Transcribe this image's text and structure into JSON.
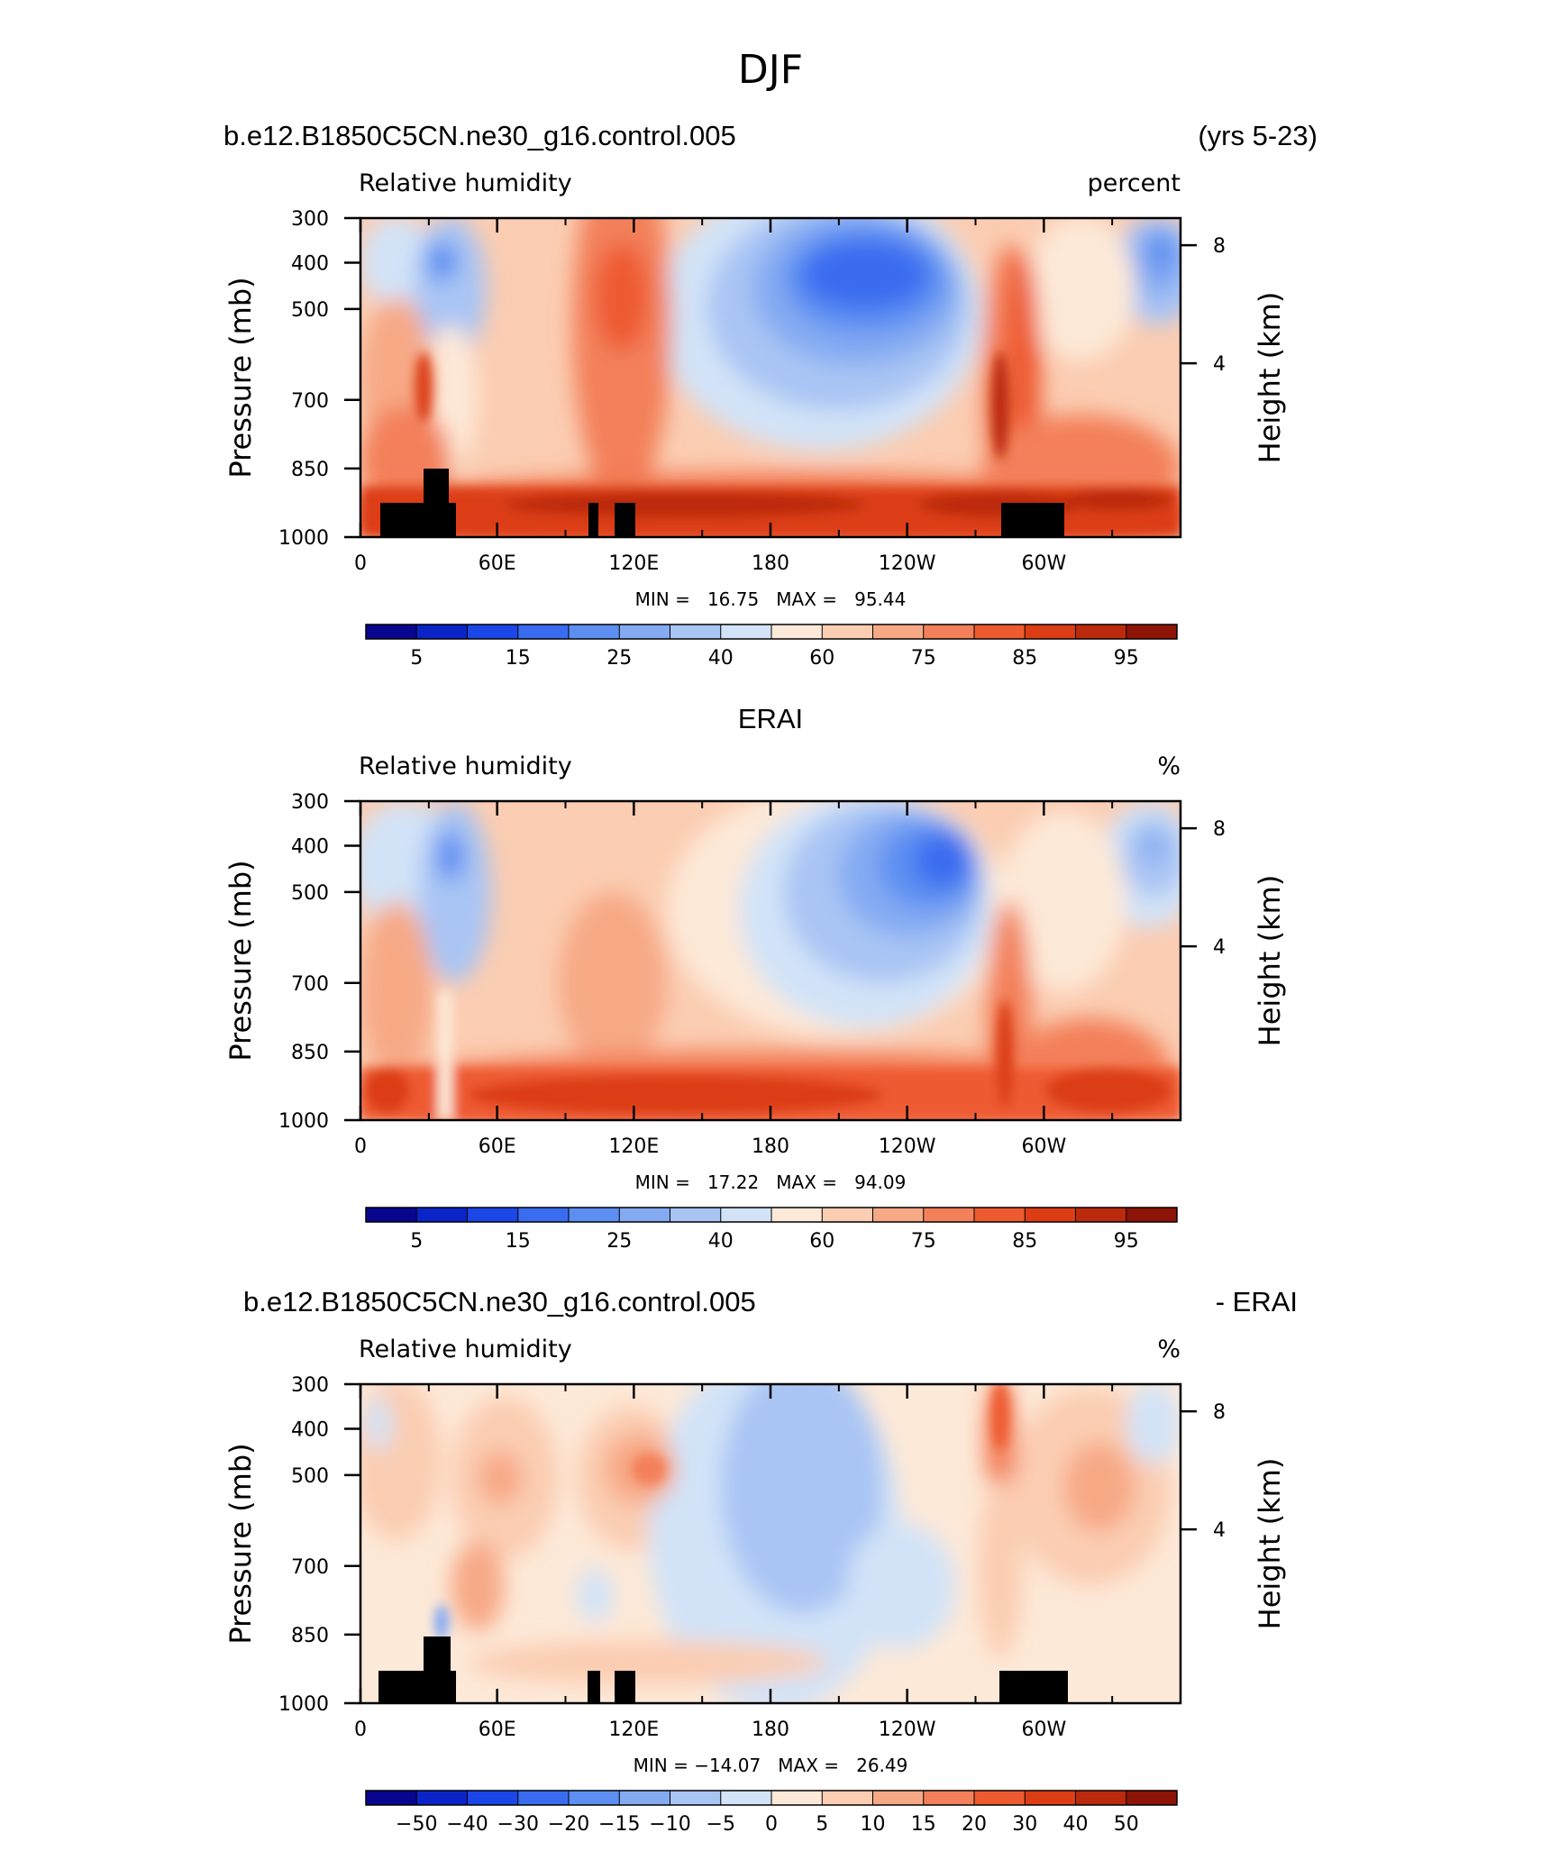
{
  "main_title": "DJF",
  "chart_data": [
    {
      "type": "heatmap",
      "id": "model",
      "header_left": "b.e12.B1850C5CN.ne30_g16.control.005",
      "header_right": "(yrs 5-23)",
      "left_string": "Relative humidity",
      "right_string": "percent",
      "ylabel": "Pressure (mb)",
      "ylabel_right": "Height (km)",
      "xticks": [
        "0",
        "60E",
        "120E",
        "180",
        "120W",
        "60W"
      ],
      "yticks": [
        "300",
        "400",
        "500",
        "700",
        "850",
        "1000"
      ],
      "yticks_right": [
        "8",
        "4"
      ],
      "stats": "MIN =   16.75   MAX =   95.44",
      "min": 16.75,
      "max": 95.44,
      "levels": [
        5,
        10,
        15,
        20,
        25,
        30,
        40,
        50,
        60,
        65,
        75,
        80,
        85,
        90,
        95
      ],
      "colorbar_labels": [
        "5",
        "15",
        "25",
        "40",
        "60",
        "75",
        "85",
        "95"
      ],
      "colors": [
        "#08068e",
        "#0b24c8",
        "#1b46e8",
        "#3a6cf0",
        "#5d8ff2",
        "#84aaf2",
        "#a9c5f4",
        "#d2e3f8",
        "#fde9d8",
        "#fbcdb2",
        "#f7a986",
        "#f3805a",
        "#ee5a30",
        "#dc3d14",
        "#bc2a0d",
        "#8e1407"
      ],
      "has_topography": true
    },
    {
      "type": "heatmap",
      "id": "obs",
      "header_center": "ERAI",
      "left_string": "Relative humidity",
      "right_string": "%",
      "ylabel": "Pressure (mb)",
      "ylabel_right": "Height (km)",
      "xticks": [
        "0",
        "60E",
        "120E",
        "180",
        "120W",
        "60W"
      ],
      "yticks": [
        "300",
        "400",
        "500",
        "700",
        "850",
        "1000"
      ],
      "yticks_right": [
        "8",
        "4"
      ],
      "stats": "MIN =   17.22   MAX =   94.09",
      "min": 17.22,
      "max": 94.09,
      "levels": [
        5,
        10,
        15,
        20,
        25,
        30,
        40,
        50,
        60,
        65,
        75,
        80,
        85,
        90,
        95
      ],
      "colorbar_labels": [
        "5",
        "15",
        "25",
        "40",
        "60",
        "75",
        "85",
        "95"
      ],
      "colors": [
        "#08068e",
        "#0b24c8",
        "#1b46e8",
        "#3a6cf0",
        "#5d8ff2",
        "#84aaf2",
        "#a9c5f4",
        "#d2e3f8",
        "#fde9d8",
        "#fbcdb2",
        "#f7a986",
        "#f3805a",
        "#ee5a30",
        "#dc3d14",
        "#bc2a0d",
        "#8e1407"
      ],
      "has_topography": false
    },
    {
      "type": "heatmap",
      "id": "diff",
      "header_left": "b.e12.B1850C5CN.ne30_g16.control.005",
      "header_right": "- ERAI",
      "left_string": "Relative humidity",
      "right_string": "%",
      "ylabel": "Pressure (mb)",
      "ylabel_right": "Height (km)",
      "xticks": [
        "0",
        "60E",
        "120E",
        "180",
        "120W",
        "60W"
      ],
      "yticks": [
        "300",
        "400",
        "500",
        "700",
        "850",
        "1000"
      ],
      "yticks_right": [
        "8",
        "4"
      ],
      "stats": "MIN = −14.07   MAX =   26.49",
      "min": -14.07,
      "max": 26.49,
      "levels": [
        -50,
        -40,
        -30,
        -20,
        -15,
        -10,
        -5,
        0,
        5,
        10,
        15,
        20,
        30,
        40,
        50
      ],
      "colorbar_labels": [
        "−50",
        "−40",
        "−30",
        "−20",
        "−15",
        "−10",
        "−5",
        "0",
        "5",
        "10",
        "15",
        "20",
        "30",
        "40",
        "50"
      ],
      "colors": [
        "#08068e",
        "#0b24c8",
        "#1b46e8",
        "#3a6cf0",
        "#5d8ff2",
        "#84aaf2",
        "#a9c5f4",
        "#d2e3f8",
        "#fde9d8",
        "#fbcdb2",
        "#f7a986",
        "#f3805a",
        "#ee5a30",
        "#dc3d14",
        "#bc2a0d",
        "#8e1407"
      ],
      "has_topography": true
    }
  ]
}
